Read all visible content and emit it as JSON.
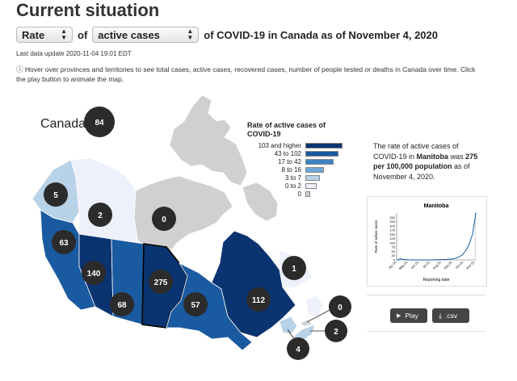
{
  "header": {
    "title": "Current situation",
    "rate_select": "Rate",
    "of_text": "of",
    "measure_select": "active cases",
    "suffix_text": "of COVID-19 in Canada as of November 4, 2020",
    "last_update": "Last data update 2020-11-04 19:01 EDT",
    "info_icon": "info-circle-icon",
    "info_text": "Hover over provinces and territories to see total cases, active cases, recovered cases, number of people tested or deaths in Canada over time. Click the play button to animate the map."
  },
  "map": {
    "country_label": "Canada",
    "country_value": "84",
    "regions": {
      "yt": {
        "name": "Yukon",
        "value": "5",
        "color": "#b8d2e8"
      },
      "nt": {
        "name": "Northwest Territories",
        "value": "2",
        "color": "#eef1fb"
      },
      "nu": {
        "name": "Nunavut",
        "value": "0",
        "color": "#d0d0d0"
      },
      "bc": {
        "name": "British Columbia",
        "value": "63",
        "color": "#1a5aa0"
      },
      "ab": {
        "name": "Alberta",
        "value": "140",
        "color": "#0a3470"
      },
      "sk": {
        "name": "Saskatchewan",
        "value": "68",
        "color": "#1a5aa0"
      },
      "mb": {
        "name": "Manitoba",
        "value": "275",
        "color": "#0a3470"
      },
      "on": {
        "name": "Ontario",
        "value": "57",
        "color": "#1a5aa0"
      },
      "qc": {
        "name": "Quebec",
        "value": "112",
        "color": "#0a3470"
      },
      "nl": {
        "name": "Newfoundland and Labrador",
        "value": "1",
        "color": "#eef1fb"
      },
      "pe": {
        "name": "Prince Edward Island",
        "value": "0",
        "color": "#d0d0d0"
      },
      "ns": {
        "name": "Nova Scotia",
        "value": "2",
        "color": "#b8d2e8"
      },
      "nb": {
        "name": "New Brunswick",
        "value": "4",
        "color": "#b8d2e8"
      }
    }
  },
  "legend": {
    "title_line1": "Rate of active cases of",
    "title_line2": "COVID-19",
    "items": [
      {
        "label": "103 and higher",
        "color": "#0a3470",
        "fraction": 1.0
      },
      {
        "label": "43 to 102",
        "color": "#1a5aa0",
        "fraction": 0.9
      },
      {
        "label": "17 to 42",
        "color": "#3d82c4",
        "fraction": 0.75
      },
      {
        "label": "8 to 16",
        "color": "#6ea8d8",
        "fraction": 0.5
      },
      {
        "label": "3 to 7",
        "color": "#b8d2e8",
        "fraction": 0.4
      },
      {
        "label": "0 to 2",
        "color": "#eef1fb",
        "fraction": 0.3
      },
      {
        "label": "0",
        "color": "#d0d0d0",
        "fraction": 0.12
      }
    ]
  },
  "description": {
    "line_pre": "The rate of active cases of COVID-19 in",
    "province": "Manitoba",
    "was": "was",
    "rate": "275 per 100,000 population",
    "line_post": "as of November 4, 2020."
  },
  "chart_data": {
    "type": "line",
    "title": "Manitoba",
    "xlabel": "Reporting date",
    "ylabel": "Rate of active cases",
    "ylim": [
      0,
      275
    ],
    "yticks": [
      "250",
      "225",
      "200",
      "175",
      "150",
      "125",
      "100",
      "75",
      "50",
      "25",
      "0"
    ],
    "xticks": [
      "Apr 01",
      "May 01",
      "Jun 01",
      "Jul 01",
      "Aug 01",
      "Sep 01",
      "Oct 01",
      "Nov 01"
    ],
    "x": [
      0,
      0.2,
      0.35,
      0.5,
      1,
      1.5,
      2,
      2.5,
      3,
      3.5,
      4,
      4.5,
      5,
      5.3,
      5.6,
      5.9,
      6.2,
      6.5,
      6.8,
      7.0,
      7.1
    ],
    "values": [
      0,
      2,
      8,
      3,
      1,
      0,
      0,
      0,
      0,
      1,
      2,
      3,
      6,
      10,
      18,
      30,
      55,
      90,
      150,
      230,
      275
    ]
  },
  "buttons": {
    "play_icon": "play-icon",
    "play_label": "Play",
    "csv_icon": "download-icon",
    "csv_label": ".csv"
  }
}
